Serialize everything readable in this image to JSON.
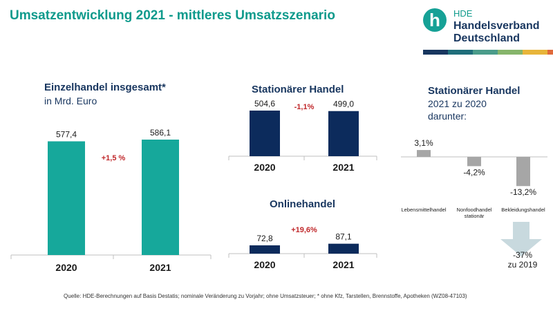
{
  "title": "Umsatzentwicklung 2021 - mittleres Umsatzszenario",
  "logo": {
    "line1": "HDE",
    "line2": "Handelsverband",
    "line3": "Deutschland",
    "glyph": "h",
    "stripe_colors": [
      "#18365f",
      "#1f6e7a",
      "#4a9c8a",
      "#86b56b",
      "#e8b53a",
      "#e06a3b"
    ]
  },
  "colors": {
    "teal": "#16a89b",
    "navy": "#0c2b5c",
    "grey": "#a6a6a6",
    "change_red": "#c0282b"
  },
  "chart_data": [
    {
      "type": "bar",
      "title": "Einzelhandel insgesamt*",
      "subtitle": "in Mrd. Euro",
      "categories": [
        "2020",
        "2021"
      ],
      "values": [
        577.4,
        586.1
      ],
      "value_labels": [
        "577,4",
        "586,1"
      ],
      "change": "+1,5 %",
      "color": "#16a89b"
    },
    {
      "type": "bar",
      "title": "Stationärer Handel",
      "categories": [
        "2020",
        "2021"
      ],
      "values": [
        504.6,
        499.0
      ],
      "value_labels": [
        "504,6",
        "499,0"
      ],
      "change": "-1,1%",
      "color": "#0c2b5c"
    },
    {
      "type": "bar",
      "title": "Onlinehandel",
      "categories": [
        "2020",
        "2021"
      ],
      "values": [
        72.8,
        87.1
      ],
      "value_labels": [
        "72,8",
        "87,1"
      ],
      "change": "+19,6%",
      "color": "#0c2b5c"
    },
    {
      "type": "bar",
      "title": "Stationärer Handel",
      "subtitle": "2021 zu 2020",
      "subtitle2": "darunter:",
      "categories": [
        "Lebensmittelhandel",
        "Nonfoodhandel stationär",
        "Bekleidungshandel"
      ],
      "category_lines": [
        [
          "Lebensmittelhandel"
        ],
        [
          "Nonfoodhandel",
          "stationär"
        ],
        [
          "Bekleidungshandel"
        ]
      ],
      "values": [
        3.1,
        -4.2,
        -13.2
      ],
      "value_labels": [
        "3,1%",
        "-4,2%",
        "-13,2%"
      ],
      "unit": "%",
      "color": "#a6a6a6",
      "annotation": {
        "line1": "-37%",
        "line2": "zu 2019"
      }
    }
  ],
  "source": "Quelle: HDE-Berechnungen auf Basis Destatis; nominale Veränderung zu Vorjahr; ohne Umsatzsteuer; * ohne Kfz, Tarstellen, Brennstoffe, Apotheken (WZ08-47103)"
}
